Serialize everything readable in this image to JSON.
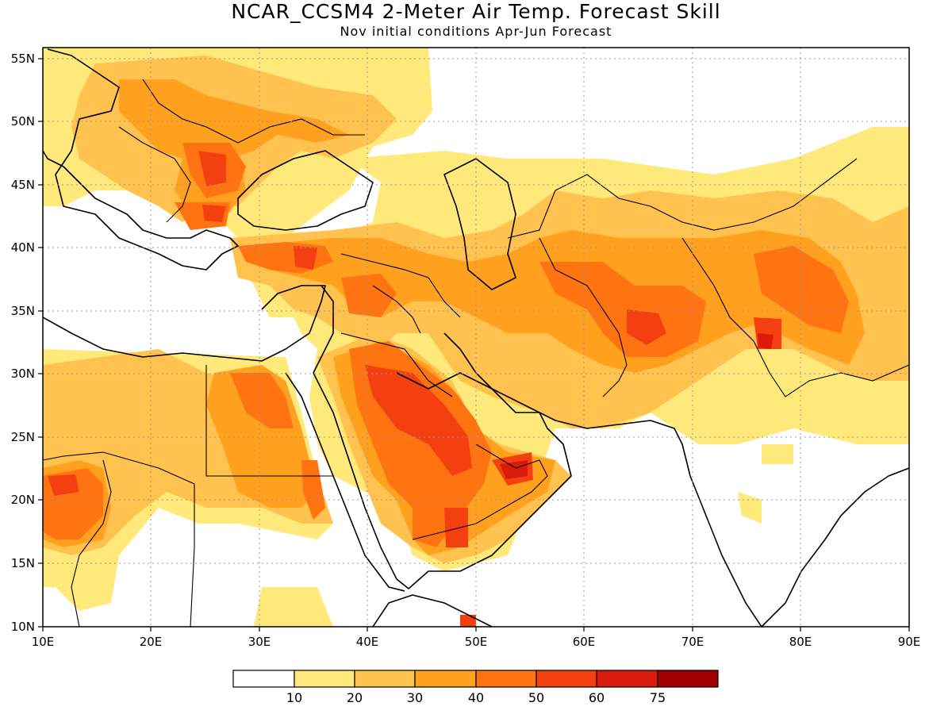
{
  "title": "NCAR_CCSM4 2-Meter Air Temp. Forecast Skill",
  "subtitle": "Nov initial conditions   Apr-Jun Forecast",
  "map": {
    "lon_range": [
      10,
      90
    ],
    "lat_range": [
      10,
      56
    ],
    "lon_ticks": [
      "10E",
      "20E",
      "30E",
      "40E",
      "50E",
      "60E",
      "70E",
      "80E",
      "90E"
    ],
    "lat_ticks": [
      "10N",
      "15N",
      "20N",
      "25N",
      "30N",
      "35N",
      "40N",
      "45N",
      "50N",
      "55N"
    ],
    "grid": "dotted"
  },
  "colorbar": {
    "labels": [
      "10",
      "20",
      "30",
      "40",
      "50",
      "60",
      "75"
    ],
    "colors": [
      "#ffffff",
      "#ffe97a",
      "#ffc24e",
      "#ffa01f",
      "#ff7310",
      "#f44010",
      "#dc1a0a",
      "#a00000"
    ]
  }
}
